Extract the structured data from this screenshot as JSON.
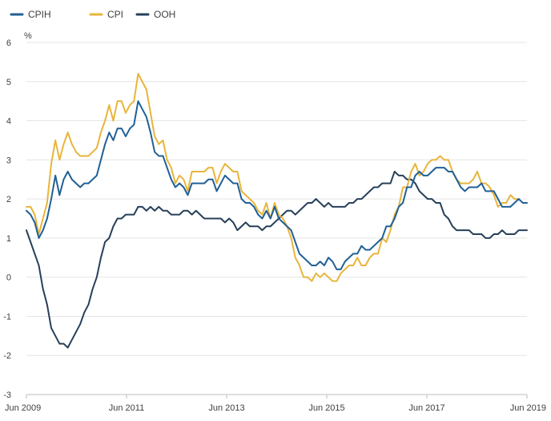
{
  "chart_data": {
    "type": "line",
    "ylabel": "%",
    "ylim": [
      -3,
      6
    ],
    "yticks": [
      -3,
      -2,
      -1,
      0,
      1,
      2,
      3,
      4,
      5,
      6
    ],
    "x_start": "Jun 2009",
    "x_end": "Jun 2019",
    "xticks": [
      "Jun 2009",
      "Jun 2011",
      "Jun 2013",
      "Jun 2015",
      "Jun 2017",
      "Jun 2019"
    ],
    "grid": true,
    "legend_position": "top-left",
    "colors": {
      "CPIH": "#206095",
      "CPI": "#e8b53b",
      "OOH": "#27405a"
    },
    "series": [
      {
        "name": "CPIH",
        "values": [
          1.7,
          1.6,
          1.4,
          1.0,
          1.2,
          1.5,
          2.0,
          2.6,
          2.1,
          2.5,
          2.7,
          2.5,
          2.4,
          2.3,
          2.4,
          2.4,
          2.5,
          2.6,
          3.0,
          3.4,
          3.7,
          3.5,
          3.8,
          3.8,
          3.6,
          3.8,
          3.9,
          4.5,
          4.3,
          4.1,
          3.7,
          3.2,
          3.1,
          3.1,
          2.8,
          2.5,
          2.3,
          2.4,
          2.3,
          2.1,
          2.4,
          2.4,
          2.4,
          2.4,
          2.5,
          2.5,
          2.2,
          2.4,
          2.6,
          2.5,
          2.4,
          2.4,
          2.0,
          1.9,
          1.9,
          1.8,
          1.6,
          1.5,
          1.7,
          1.5,
          1.8,
          1.5,
          1.4,
          1.3,
          1.2,
          0.9,
          0.6,
          0.5,
          0.4,
          0.3,
          0.3,
          0.4,
          0.3,
          0.5,
          0.4,
          0.2,
          0.2,
          0.4,
          0.5,
          0.6,
          0.6,
          0.8,
          0.7,
          0.7,
          0.8,
          0.9,
          1.0,
          1.3,
          1.3,
          1.5,
          1.8,
          1.9,
          2.3,
          2.3,
          2.6,
          2.7,
          2.6,
          2.6,
          2.7,
          2.8,
          2.8,
          2.8,
          2.7,
          2.7,
          2.5,
          2.3,
          2.2,
          2.3,
          2.3,
          2.3,
          2.4,
          2.2,
          2.2,
          2.2,
          2.0,
          1.8,
          1.8,
          1.8,
          1.9,
          2.0,
          1.9,
          1.9
        ],
        "data_label": ""
      },
      {
        "name": "CPI",
        "values": [
          1.8,
          1.8,
          1.6,
          1.1,
          1.5,
          1.9,
          2.9,
          3.5,
          3.0,
          3.4,
          3.7,
          3.4,
          3.2,
          3.1,
          3.1,
          3.1,
          3.2,
          3.3,
          3.7,
          4.0,
          4.4,
          4.0,
          4.5,
          4.5,
          4.2,
          4.4,
          4.5,
          5.2,
          5.0,
          4.8,
          4.2,
          3.6,
          3.4,
          3.5,
          3.0,
          2.8,
          2.4,
          2.6,
          2.5,
          2.2,
          2.7,
          2.7,
          2.7,
          2.7,
          2.8,
          2.8,
          2.4,
          2.7,
          2.9,
          2.8,
          2.7,
          2.7,
          2.2,
          2.1,
          2.0,
          1.9,
          1.7,
          1.6,
          1.9,
          1.5,
          1.9,
          1.6,
          1.5,
          1.3,
          1.0,
          0.5,
          0.3,
          0.0,
          0.0,
          -0.1,
          0.1,
          0.0,
          0.1,
          0.0,
          -0.1,
          -0.1,
          0.1,
          0.2,
          0.3,
          0.3,
          0.5,
          0.3,
          0.3,
          0.5,
          0.6,
          0.6,
          1.0,
          0.9,
          1.2,
          1.6,
          1.8,
          2.3,
          2.3,
          2.7,
          2.9,
          2.6,
          2.7,
          2.9,
          3.0,
          3.0,
          3.1,
          3.0,
          3.0,
          2.7,
          2.5,
          2.4,
          2.4,
          2.4,
          2.5,
          2.7,
          2.4,
          2.4,
          2.3,
          2.1,
          1.8,
          1.9,
          1.9,
          2.1,
          2.0,
          2.0
        ],
        "data_label": ""
      },
      {
        "name": "OOH",
        "values": [
          1.2,
          0.9,
          0.6,
          0.3,
          -0.3,
          -0.7,
          -1.3,
          -1.5,
          -1.7,
          -1.7,
          -1.8,
          -1.6,
          -1.4,
          -1.2,
          -0.9,
          -0.7,
          -0.3,
          0.0,
          0.5,
          0.9,
          1.0,
          1.3,
          1.5,
          1.5,
          1.6,
          1.6,
          1.6,
          1.8,
          1.8,
          1.7,
          1.8,
          1.7,
          1.8,
          1.7,
          1.7,
          1.6,
          1.6,
          1.6,
          1.7,
          1.7,
          1.6,
          1.7,
          1.6,
          1.5,
          1.5,
          1.5,
          1.5,
          1.5,
          1.4,
          1.5,
          1.4,
          1.2,
          1.3,
          1.4,
          1.3,
          1.3,
          1.3,
          1.2,
          1.3,
          1.3,
          1.4,
          1.5,
          1.6,
          1.7,
          1.7,
          1.6,
          1.7,
          1.8,
          1.9,
          1.9,
          2.0,
          1.9,
          1.8,
          1.9,
          1.8,
          1.8,
          1.8,
          1.8,
          1.9,
          1.9,
          2.0,
          2.0,
          2.1,
          2.2,
          2.3,
          2.3,
          2.4,
          2.4,
          2.4,
          2.7,
          2.6,
          2.6,
          2.5,
          2.5,
          2.4,
          2.2,
          2.1,
          2.0,
          2.0,
          1.9,
          1.9,
          1.6,
          1.5,
          1.3,
          1.2,
          1.2,
          1.2,
          1.2,
          1.1,
          1.1,
          1.1,
          1.0,
          1.0,
          1.1,
          1.1,
          1.2,
          1.1,
          1.1,
          1.1,
          1.2,
          1.2,
          1.2
        ],
        "data_label": ""
      }
    ]
  }
}
